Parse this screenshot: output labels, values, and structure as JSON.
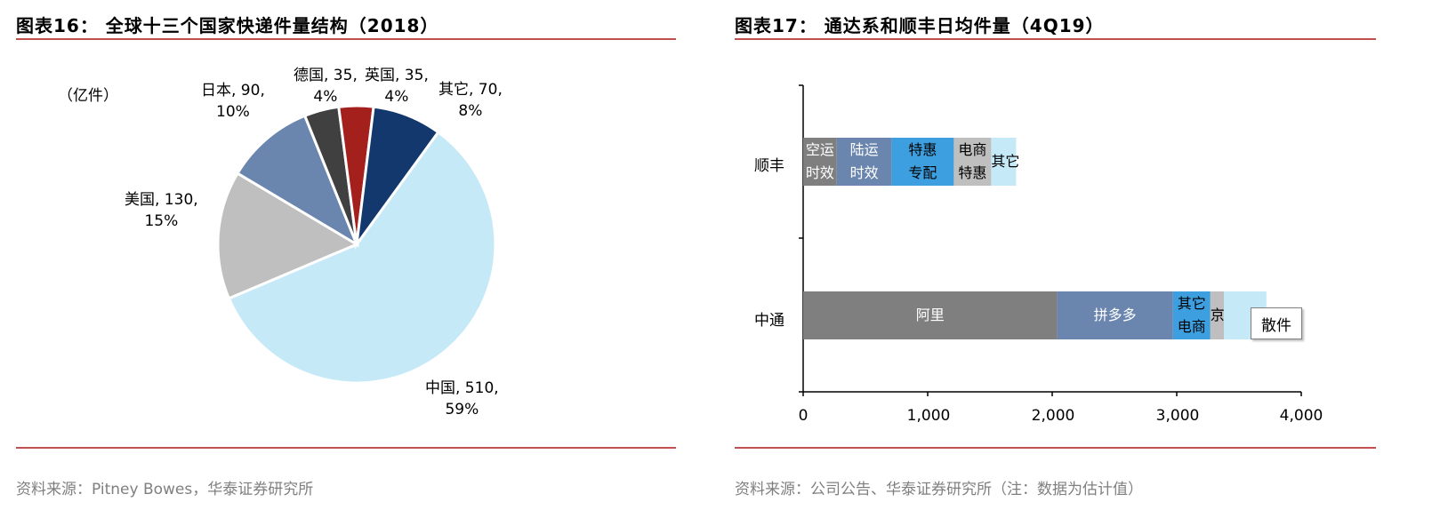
{
  "left": {
    "title": "图表16：  全球十三个国家快递件量结构（2018）",
    "unit": "（亿件）",
    "source": "资料来源：Pitney Bowes，华泰证券研究所"
  },
  "right": {
    "title": "图表17：  通达系和顺丰日均件量（4Q19）",
    "source": "资料来源：公司公告、华泰证券研究所（注：数据为估计值）",
    "callout": "散件"
  },
  "chart_data": [
    {
      "type": "pie",
      "title": "全球十三个国家快递件量结构（2018）",
      "unit": "（亿件）",
      "slices": [
        {
          "name": "中国",
          "value": 510,
          "pct": "59%",
          "color": "#c6e9f8",
          "l1": "中国, 510,",
          "l2": "59%"
        },
        {
          "name": "美国",
          "value": 130,
          "pct": "15%",
          "color": "#bfbfbf",
          "l1": "美国, 130,",
          "l2": "15%"
        },
        {
          "name": "日本",
          "value": 90,
          "pct": "10%",
          "color": "#6b86ae",
          "l1": "日本, 90,",
          "l2": "10%"
        },
        {
          "name": "德国",
          "value": 35,
          "pct": "4%",
          "color": "#404040",
          "l1": "德国, 35,",
          "l2": "4%"
        },
        {
          "name": "英国",
          "value": 35,
          "pct": "4%",
          "color": "#a4201c",
          "l1": "英国, 35,",
          "l2": "4%"
        },
        {
          "name": "其它",
          "value": 70,
          "pct": "8%",
          "color": "#13386e",
          "l1": "其它, 70,",
          "l2": "8%"
        }
      ]
    },
    {
      "type": "bar",
      "orientation": "horizontal",
      "stacked": true,
      "title": "通达系和顺丰日均件量（4Q19）",
      "categories": [
        "顺丰",
        "中通"
      ],
      "xlim": [
        0,
        4000
      ],
      "xticks": [
        "0",
        "1,000",
        "2,000",
        "3,000",
        "4,000"
      ],
      "bars": [
        {
          "category": "顺丰",
          "segments": [
            {
              "label": "空运时效",
              "line1": "空运",
              "line2": "时效",
              "value": 270,
              "color": "#7f7f7f",
              "text_dark": false
            },
            {
              "label": "陆运时效",
              "line1": "陆运",
              "line2": "时效",
              "value": 440,
              "color": "#6b86ae",
              "text_dark": false
            },
            {
              "label": "特惠专配",
              "line1": "特惠",
              "line2": "专配",
              "value": 500,
              "color": "#3d9fe0",
              "text_dark": true
            },
            {
              "label": "电商特惠",
              "line1": "电商",
              "line2": "特惠",
              "value": 300,
              "color": "#bfbfbf",
              "text_dark": true
            },
            {
              "label": "其它",
              "line1": "其它",
              "line2": "",
              "value": 200,
              "color": "#c6e9f8",
              "text_dark": true
            }
          ]
        },
        {
          "category": "中通",
          "segments": [
            {
              "label": "阿里",
              "line1": "阿里",
              "line2": "",
              "value": 2040,
              "color": "#7f7f7f",
              "text_dark": false
            },
            {
              "label": "拼多多",
              "line1": "拼多多",
              "line2": "",
              "value": 930,
              "color": "#6b86ae",
              "text_dark": false
            },
            {
              "label": "其它电商",
              "line1": "其它",
              "line2": "电商",
              "value": 300,
              "color": "#3d9fe0",
              "text_dark": true
            },
            {
              "label": "京",
              "line1": "京",
              "line2": "",
              "value": 110,
              "color": "#bfbfbf",
              "text_dark": true
            },
            {
              "label": "散件",
              "line1": "",
              "line2": "",
              "value": 340,
              "color": "#c6e9f8",
              "text_dark": true
            }
          ]
        }
      ]
    }
  ]
}
